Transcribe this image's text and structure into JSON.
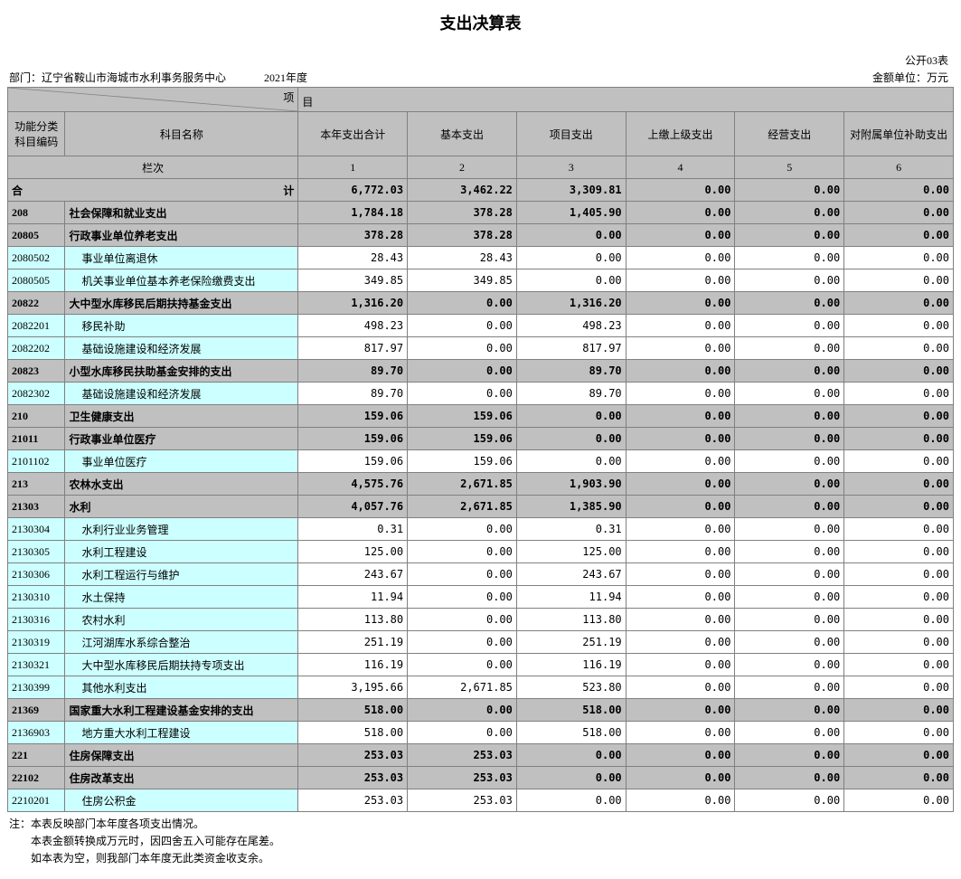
{
  "title": "支出决算表",
  "sheet_id": "公开03表",
  "meta": {
    "dept_label": "部门：",
    "dept": "辽宁省鞍山市海城市水利事务服务中心",
    "year": "2021年度",
    "unit": "金额单位：万元"
  },
  "header": {
    "diag_top": "项",
    "diag_top2": "目",
    "diag_bot": "",
    "code": "功能分类科目编码",
    "name": "科目名称",
    "cols": [
      "本年支出合计",
      "基本支出",
      "项目支出",
      "上缴上级支出",
      "经营支出",
      "对附属单位补助支出"
    ],
    "lanci": "栏次",
    "lanci_nums": [
      "1",
      "2",
      "3",
      "4",
      "5",
      "6"
    ],
    "heji_left": "合",
    "heji_right": "计"
  },
  "total": [
    "6,772.03",
    "3,462.22",
    "3,309.81",
    "0.00",
    "0.00",
    "0.00"
  ],
  "rows": [
    {
      "style": "bold",
      "code": "208",
      "name": "社会保障和就业支出",
      "v": [
        "1,784.18",
        "378.28",
        "1,405.90",
        "0.00",
        "0.00",
        "0.00"
      ]
    },
    {
      "style": "bold",
      "code": "20805",
      "name": "行政事业单位养老支出",
      "v": [
        "378.28",
        "378.28",
        "0.00",
        "0.00",
        "0.00",
        "0.00"
      ]
    },
    {
      "style": "cyan",
      "code": "2080502",
      "indent": 1,
      "name": "事业单位离退休",
      "v": [
        "28.43",
        "28.43",
        "0.00",
        "0.00",
        "0.00",
        "0.00"
      ]
    },
    {
      "style": "cyan",
      "code": "2080505",
      "indent": 1,
      "name": "机关事业单位基本养老保险缴费支出",
      "v": [
        "349.85",
        "349.85",
        "0.00",
        "0.00",
        "0.00",
        "0.00"
      ]
    },
    {
      "style": "bold",
      "code": "20822",
      "name": "大中型水库移民后期扶持基金支出",
      "v": [
        "1,316.20",
        "0.00",
        "1,316.20",
        "0.00",
        "0.00",
        "0.00"
      ]
    },
    {
      "style": "cyan",
      "code": "2082201",
      "indent": 1,
      "name": "移民补助",
      "v": [
        "498.23",
        "0.00",
        "498.23",
        "0.00",
        "0.00",
        "0.00"
      ]
    },
    {
      "style": "cyan",
      "code": "2082202",
      "indent": 1,
      "name": "基础设施建设和经济发展",
      "v": [
        "817.97",
        "0.00",
        "817.97",
        "0.00",
        "0.00",
        "0.00"
      ]
    },
    {
      "style": "bold",
      "code": "20823",
      "name": "小型水库移民扶助基金安排的支出",
      "v": [
        "89.70",
        "0.00",
        "89.70",
        "0.00",
        "0.00",
        "0.00"
      ]
    },
    {
      "style": "cyan",
      "code": "2082302",
      "indent": 1,
      "name": "基础设施建设和经济发展",
      "v": [
        "89.70",
        "0.00",
        "89.70",
        "0.00",
        "0.00",
        "0.00"
      ]
    },
    {
      "style": "bold",
      "code": "210",
      "name": "卫生健康支出",
      "v": [
        "159.06",
        "159.06",
        "0.00",
        "0.00",
        "0.00",
        "0.00"
      ]
    },
    {
      "style": "bold",
      "code": "21011",
      "name": "行政事业单位医疗",
      "v": [
        "159.06",
        "159.06",
        "0.00",
        "0.00",
        "0.00",
        "0.00"
      ]
    },
    {
      "style": "cyan",
      "code": "2101102",
      "indent": 1,
      "name": "事业单位医疗",
      "v": [
        "159.06",
        "159.06",
        "0.00",
        "0.00",
        "0.00",
        "0.00"
      ]
    },
    {
      "style": "bold",
      "code": "213",
      "name": "农林水支出",
      "v": [
        "4,575.76",
        "2,671.85",
        "1,903.90",
        "0.00",
        "0.00",
        "0.00"
      ]
    },
    {
      "style": "bold",
      "code": "21303",
      "name": "水利",
      "v": [
        "4,057.76",
        "2,671.85",
        "1,385.90",
        "0.00",
        "0.00",
        "0.00"
      ]
    },
    {
      "style": "cyan",
      "code": "2130304",
      "indent": 1,
      "name": "水利行业业务管理",
      "v": [
        "0.31",
        "0.00",
        "0.31",
        "0.00",
        "0.00",
        "0.00"
      ]
    },
    {
      "style": "cyan",
      "code": "2130305",
      "indent": 1,
      "name": "水利工程建设",
      "v": [
        "125.00",
        "0.00",
        "125.00",
        "0.00",
        "0.00",
        "0.00"
      ]
    },
    {
      "style": "cyan",
      "code": "2130306",
      "indent": 1,
      "name": "水利工程运行与维护",
      "v": [
        "243.67",
        "0.00",
        "243.67",
        "0.00",
        "0.00",
        "0.00"
      ]
    },
    {
      "style": "cyan",
      "code": "2130310",
      "indent": 1,
      "name": "水土保持",
      "v": [
        "11.94",
        "0.00",
        "11.94",
        "0.00",
        "0.00",
        "0.00"
      ]
    },
    {
      "style": "cyan",
      "code": "2130316",
      "indent": 1,
      "name": "农村水利",
      "v": [
        "113.80",
        "0.00",
        "113.80",
        "0.00",
        "0.00",
        "0.00"
      ]
    },
    {
      "style": "cyan",
      "code": "2130319",
      "indent": 1,
      "name": "江河湖库水系综合整治",
      "v": [
        "251.19",
        "0.00",
        "251.19",
        "0.00",
        "0.00",
        "0.00"
      ]
    },
    {
      "style": "cyan",
      "code": "2130321",
      "indent": 1,
      "name": "大中型水库移民后期扶持专项支出",
      "v": [
        "116.19",
        "0.00",
        "116.19",
        "0.00",
        "0.00",
        "0.00"
      ]
    },
    {
      "style": "cyan",
      "code": "2130399",
      "indent": 1,
      "name": "其他水利支出",
      "v": [
        "3,195.66",
        "2,671.85",
        "523.80",
        "0.00",
        "0.00",
        "0.00"
      ]
    },
    {
      "style": "bold",
      "code": "21369",
      "name": "国家重大水利工程建设基金安排的支出",
      "v": [
        "518.00",
        "0.00",
        "518.00",
        "0.00",
        "0.00",
        "0.00"
      ]
    },
    {
      "style": "cyan",
      "code": "2136903",
      "indent": 1,
      "name": "地方重大水利工程建设",
      "v": [
        "518.00",
        "0.00",
        "518.00",
        "0.00",
        "0.00",
        "0.00"
      ]
    },
    {
      "style": "bold",
      "code": "221",
      "name": "住房保障支出",
      "v": [
        "253.03",
        "253.03",
        "0.00",
        "0.00",
        "0.00",
        "0.00"
      ]
    },
    {
      "style": "bold",
      "code": "22102",
      "name": "住房改革支出",
      "v": [
        "253.03",
        "253.03",
        "0.00",
        "0.00",
        "0.00",
        "0.00"
      ]
    },
    {
      "style": "cyan",
      "code": "2210201",
      "indent": 1,
      "name": "住房公积金",
      "v": [
        "253.03",
        "253.03",
        "0.00",
        "0.00",
        "0.00",
        "0.00"
      ]
    }
  ],
  "notes": [
    "注：本表反映部门本年度各项支出情况。",
    "本表金额转换成万元时，因四舍五入可能存在尾差。",
    "如本表为空，则我部门本年度无此类资金收支余。"
  ]
}
